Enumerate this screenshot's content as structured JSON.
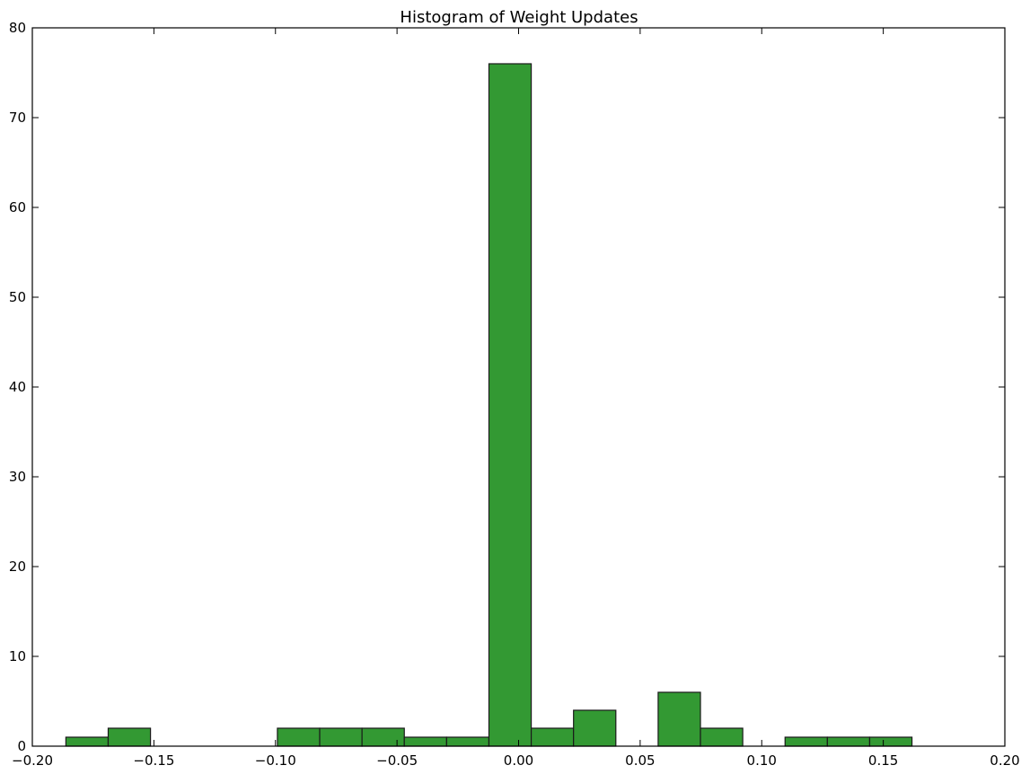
{
  "chart_data": {
    "type": "bar",
    "title": "Histogram of Weight Updates",
    "xlabel": "",
    "ylabel": "",
    "xlim": [
      -0.2,
      0.2
    ],
    "ylim": [
      0,
      80
    ],
    "grid": false,
    "bar_color": "#339933",
    "edge_color": "#1a1a1a",
    "bins": [
      {
        "x0": -0.1862,
        "x1": -0.1688,
        "count": 1
      },
      {
        "x0": -0.1688,
        "x1": -0.1514,
        "count": 2
      },
      {
        "x0": -0.1514,
        "x1": -0.134,
        "count": 0
      },
      {
        "x0": -0.134,
        "x1": -0.1166,
        "count": 0
      },
      {
        "x0": -0.1166,
        "x1": -0.0992,
        "count": 0
      },
      {
        "x0": -0.0992,
        "x1": -0.0818,
        "count": 2
      },
      {
        "x0": -0.0818,
        "x1": -0.0644,
        "count": 2
      },
      {
        "x0": -0.0644,
        "x1": -0.047,
        "count": 2
      },
      {
        "x0": -0.047,
        "x1": -0.0296,
        "count": 1
      },
      {
        "x0": -0.0296,
        "x1": -0.0122,
        "count": 1
      },
      {
        "x0": -0.0122,
        "x1": 0.0052,
        "count": 76
      },
      {
        "x0": 0.0052,
        "x1": 0.0226,
        "count": 2
      },
      {
        "x0": 0.0226,
        "x1": 0.04,
        "count": 4
      },
      {
        "x0": 0.04,
        "x1": 0.0574,
        "count": 0
      },
      {
        "x0": 0.0574,
        "x1": 0.0748,
        "count": 6
      },
      {
        "x0": 0.0748,
        "x1": 0.0922,
        "count": 2
      },
      {
        "x0": 0.0922,
        "x1": 0.1096,
        "count": 0
      },
      {
        "x0": 0.1096,
        "x1": 0.127,
        "count": 1
      },
      {
        "x0": 0.127,
        "x1": 0.1444,
        "count": 1
      },
      {
        "x0": 0.1444,
        "x1": 0.1618,
        "count": 1
      }
    ],
    "x_ticks": [
      {
        "value": -0.2,
        "label": "−0.20"
      },
      {
        "value": -0.15,
        "label": "−0.15"
      },
      {
        "value": -0.1,
        "label": "−0.10"
      },
      {
        "value": -0.05,
        "label": "−0.05"
      },
      {
        "value": 0.0,
        "label": "0.00"
      },
      {
        "value": 0.05,
        "label": "0.05"
      },
      {
        "value": 0.1,
        "label": "0.10"
      },
      {
        "value": 0.15,
        "label": "0.15"
      },
      {
        "value": 0.2,
        "label": "0.20"
      }
    ],
    "y_ticks": [
      {
        "value": 0,
        "label": "0"
      },
      {
        "value": 10,
        "label": "10"
      },
      {
        "value": 20,
        "label": "20"
      },
      {
        "value": 30,
        "label": "30"
      },
      {
        "value": 40,
        "label": "40"
      },
      {
        "value": 50,
        "label": "50"
      },
      {
        "value": 60,
        "label": "60"
      },
      {
        "value": 70,
        "label": "70"
      },
      {
        "value": 80,
        "label": "80"
      }
    ]
  }
}
